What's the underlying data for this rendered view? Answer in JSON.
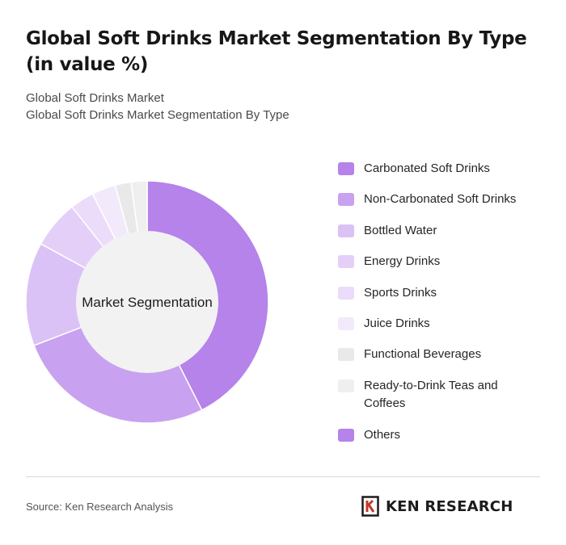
{
  "header": {
    "title": "Global Soft Drinks Market Segmentation By Type (in value %)",
    "subtitle_1": "Global Soft Drinks Market",
    "subtitle_2": "Global Soft Drinks Market Segmentation By Type"
  },
  "chart_data": {
    "type": "pie",
    "variant": "donut",
    "center_label": "Market Segmentation",
    "legend_position": "right",
    "categories": [
      "Carbonated Soft Drinks",
      "Non-Carbonated Soft Drinks",
      "Bottled Water",
      "Energy Drinks",
      "Sports Drinks",
      "Juice Drinks",
      "Functional Beverages",
      "Ready-to-Drink Teas and Coffees",
      "Others"
    ],
    "values": [
      40,
      25,
      13,
      6,
      3,
      3,
      2,
      2,
      0
    ],
    "colors": [
      "#b583ea",
      "#c8a1f0",
      "#dbc2f6",
      "#e3cff7",
      "#ebdcf9",
      "#f2eafb",
      "#e9e9e9",
      "#efefef",
      "#b583ea"
    ]
  },
  "footer": {
    "source": "Source: Ken Research Analysis",
    "logo_text": "KEN RESEARCH"
  }
}
